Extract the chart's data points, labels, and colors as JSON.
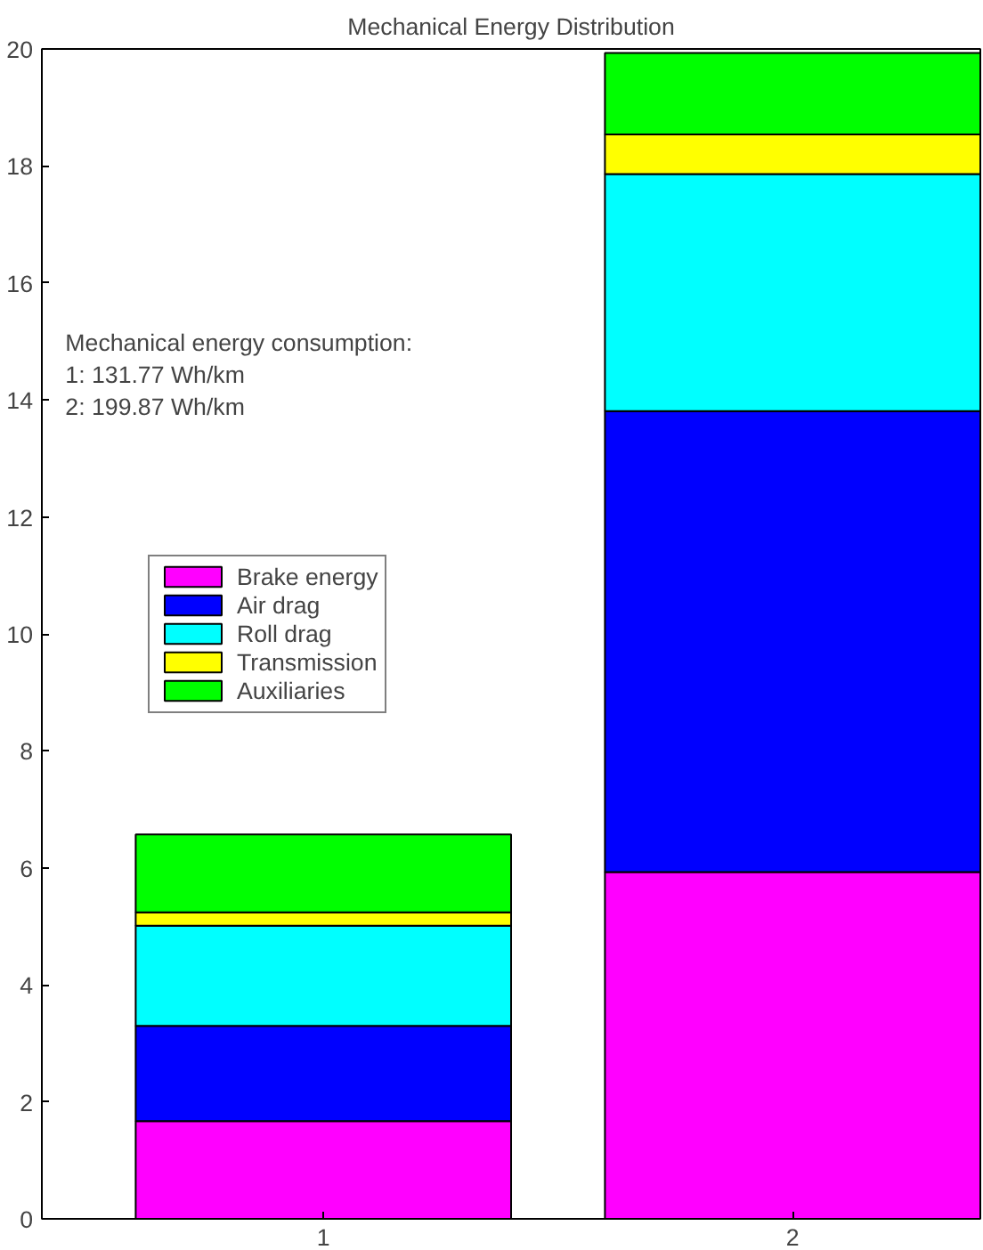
{
  "chart_data": {
    "type": "bar",
    "title": "Mechanical Energy Distribution",
    "stacked": true,
    "categories": [
      "1",
      "2"
    ],
    "series": [
      {
        "name": "Brake energy",
        "color": "#ff00ff",
        "values": [
          1.67,
          5.93
        ]
      },
      {
        "name": "Air drag",
        "color": "#0000ff",
        "values": [
          1.63,
          7.88
        ]
      },
      {
        "name": "Roll drag",
        "color": "#00ffff",
        "values": [
          1.71,
          4.05
        ]
      },
      {
        "name": "Transmission",
        "color": "#ffff00",
        "values": [
          0.23,
          0.68
        ]
      },
      {
        "name": "Auxiliaries",
        "color": "#00ff00",
        "values": [
          1.33,
          1.39
        ]
      }
    ],
    "ylim": [
      0,
      20
    ],
    "yticks": [
      0,
      2,
      4,
      6,
      8,
      10,
      12,
      14,
      16,
      18,
      20
    ],
    "grid": false,
    "legend": "left",
    "annotations": [
      "Mechanical energy consumption:\n1:  131.77 Wh/km\n2:  199.87 Wh/km"
    ]
  }
}
